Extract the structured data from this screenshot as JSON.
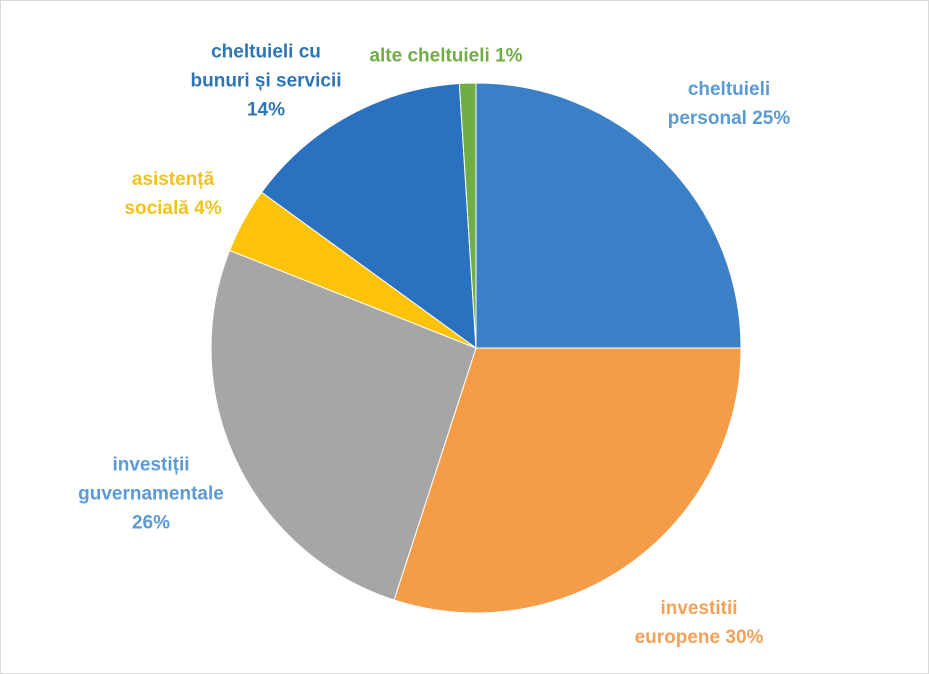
{
  "chart_data": {
    "type": "pie",
    "categories": [
      "cheltuieli personal",
      "investitii europene",
      "investiții guvernamentale",
      "asistență socială",
      "cheltuieli cu bunuri și servicii",
      "alte cheltuieli"
    ],
    "values": [
      25,
      30,
      26,
      4,
      14,
      1
    ],
    "value_labels": [
      "25%",
      "30%",
      "26%",
      "4%",
      "14%",
      "1%"
    ],
    "colors": [
      "#3b80c6",
      "#f59c47",
      "#a6a6a6",
      "#fdc20a",
      "#2a72bf",
      "#6fae45"
    ],
    "label_colors": [
      "#5b9bd5",
      "#f4a25a",
      "#5b9bd5",
      "#f2c31a",
      "#2e75b6",
      "#70ad47"
    ]
  }
}
